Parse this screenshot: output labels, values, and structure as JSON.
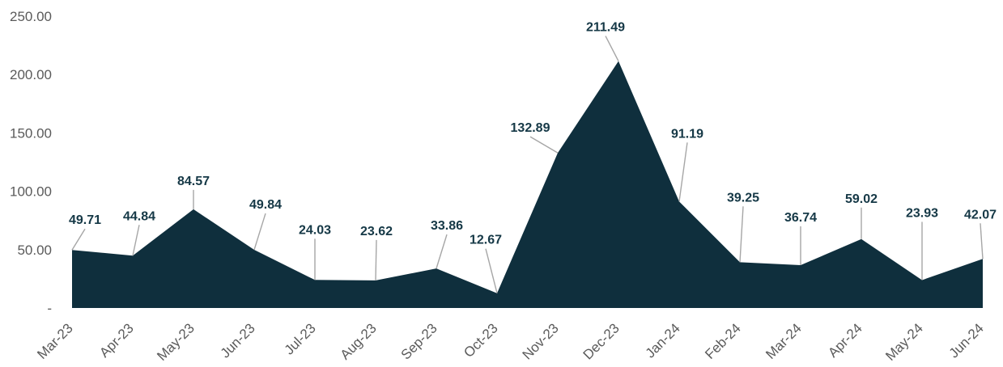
{
  "chart_data": {
    "type": "area",
    "categories": [
      "Mar-23",
      "Apr-23",
      "May-23",
      "Jun-23",
      "Jul-23",
      "Aug-23",
      "Sep-23",
      "Oct-23",
      "Nov-23",
      "Dec-23",
      "Jan-24",
      "Feb-24",
      "Mar-24",
      "Apr-24",
      "May-24",
      "Jun-24"
    ],
    "values": [
      49.71,
      44.84,
      84.57,
      49.84,
      24.03,
      23.62,
      33.86,
      12.67,
      132.89,
      211.49,
      91.19,
      39.25,
      36.74,
      59.02,
      23.93,
      42.07
    ],
    "data_labels": [
      "49.71",
      "44.84",
      "84.57",
      "49.84",
      "24.03",
      "23.62",
      "33.86",
      "12.67",
      "132.89",
      "211.49",
      "91.19",
      "39.25",
      "36.74",
      "59.02",
      "23.93",
      "42.07"
    ],
    "y_tick_labels": [
      "-",
      "50.00",
      "100.00",
      "150.00",
      "200.00",
      "250.00"
    ],
    "y_tick_values": [
      0,
      50,
      100,
      150,
      200,
      250
    ],
    "ylim": [
      0,
      250
    ],
    "title": "",
    "xlabel": "",
    "ylabel": "",
    "grid": false,
    "legend": "none",
    "colors": {
      "area": "#0f2f3d",
      "label": "#153846",
      "tick": "#5a5a5a",
      "leader": "#a6a6a6"
    }
  }
}
